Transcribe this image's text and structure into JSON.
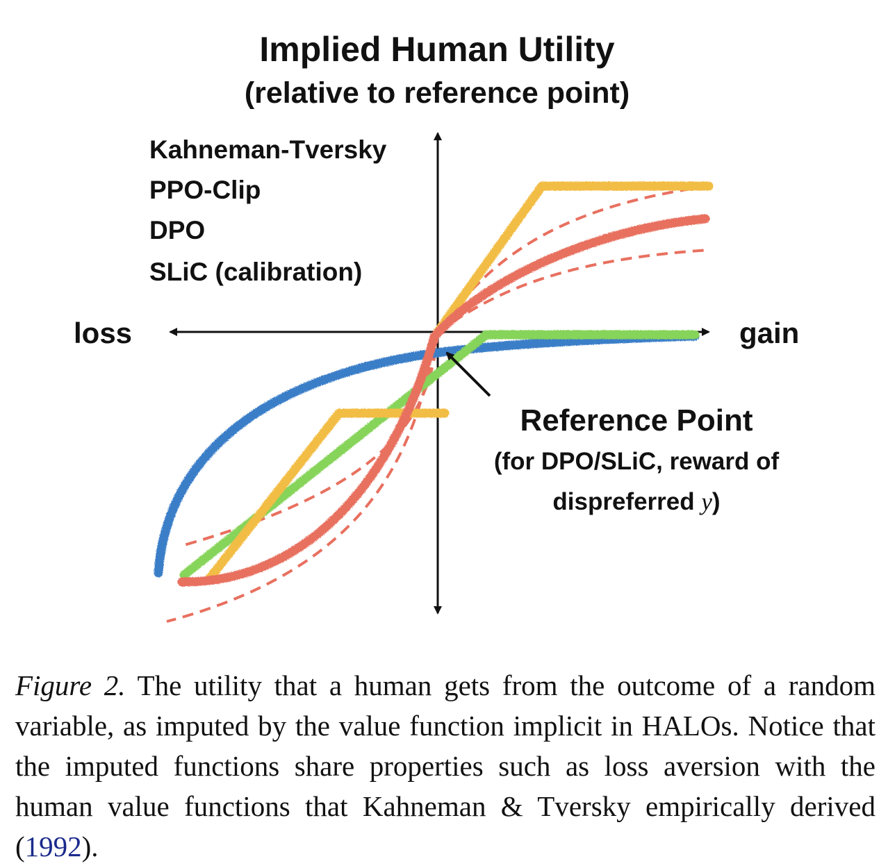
{
  "chart_data": {
    "type": "line",
    "title": "Implied Human Utility",
    "subtitle": "(relative to reference point)",
    "xlabel_left": "loss",
    "xlabel_right": "gain",
    "legend_position": "top-left",
    "colors": {
      "kt": "#e8705f",
      "ppo": "#f2bd45",
      "dpo": "#3b7ec8",
      "slic": "#86d45a",
      "axis": "#111111"
    },
    "series": [
      {
        "name": "Kahneman-Tversky",
        "color": "#e8705f",
        "style": "solid-with-dashed-band"
      },
      {
        "name": "PPO-Clip",
        "color": "#f2bd45",
        "style": "solid"
      },
      {
        "name": "DPO",
        "color": "#3b7ec8",
        "style": "solid"
      },
      {
        "name": "SLiC (calibration)",
        "color": "#86d45a",
        "style": "solid"
      }
    ],
    "annotation": {
      "title": "Reference Point",
      "line1": "(for DPO/SLiC, reward of",
      "line2_prefix": "dispreferred ",
      "line2_var": "y",
      "line2_suffix": ")"
    }
  },
  "caption": {
    "label": "Figure 2.",
    "text_before": " The utility that a human gets from the outcome of a random variable, as imputed by the value function implicit in HALOs. Notice that the imputed functions share properties such as loss aversion with the human value functions that Kahneman & Tversky empirically derived (",
    "citation": "1992",
    "text_after": ")."
  }
}
